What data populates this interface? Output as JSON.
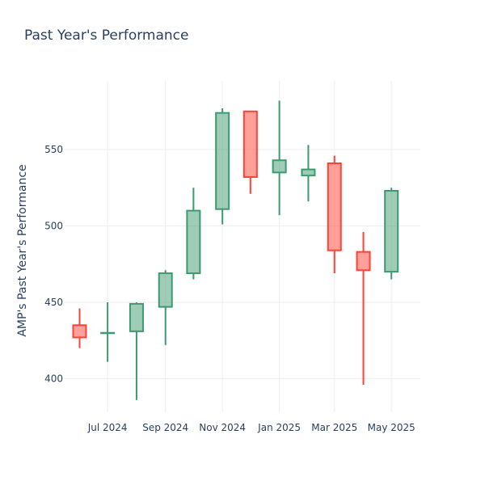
{
  "title": "Past Year's Performance",
  "chart_data": {
    "type": "candlestick",
    "title": "Past Year's Performance",
    "xlabel": "",
    "ylabel": "AMP's Past Year's Performance",
    "ylim": [
      378,
      595
    ],
    "yticks": [
      400,
      450,
      500,
      550
    ],
    "xlim": [
      "2024-05-16",
      "2025-06-01"
    ],
    "xticks": [
      {
        "date": "2024-07-01",
        "label": "Jul 2024"
      },
      {
        "date": "2024-09-01",
        "label": "Sep 2024"
      },
      {
        "date": "2024-11-01",
        "label": "Nov 2024"
      },
      {
        "date": "2025-01-01",
        "label": "Jan 2025"
      },
      {
        "date": "2025-03-01",
        "label": "Mar 2025"
      },
      {
        "date": "2025-05-01",
        "label": "May 2025"
      }
    ],
    "grid": true,
    "increasing_color": "#3d9970",
    "decreasing_color": "#ff4136",
    "candles": [
      {
        "date": "2024-06-01",
        "open": 435,
        "high": 446,
        "low": 420,
        "close": 427
      },
      {
        "date": "2024-07-01",
        "open": 430,
        "high": 450,
        "low": 411,
        "close": 430
      },
      {
        "date": "2024-08-01",
        "open": 431,
        "high": 450,
        "low": 386,
        "close": 449
      },
      {
        "date": "2024-09-01",
        "open": 447,
        "high": 471,
        "low": 422,
        "close": 469
      },
      {
        "date": "2024-10-01",
        "open": 469,
        "high": 525,
        "low": 465,
        "close": 510
      },
      {
        "date": "2024-11-01",
        "open": 511,
        "high": 577,
        "low": 501,
        "close": 574
      },
      {
        "date": "2024-12-01",
        "open": 575,
        "high": 575,
        "low": 521,
        "close": 532
      },
      {
        "date": "2025-01-01",
        "open": 535,
        "high": 582,
        "low": 507,
        "close": 543
      },
      {
        "date": "2025-02-01",
        "open": 533,
        "high": 553,
        "low": 516,
        "close": 537
      },
      {
        "date": "2025-03-01",
        "open": 541,
        "high": 546,
        "low": 469,
        "close": 484
      },
      {
        "date": "2025-04-01",
        "open": 483,
        "high": 496,
        "low": 396,
        "close": 471
      },
      {
        "date": "2025-05-01",
        "open": 470,
        "high": 525,
        "low": 465,
        "close": 523
      }
    ]
  }
}
